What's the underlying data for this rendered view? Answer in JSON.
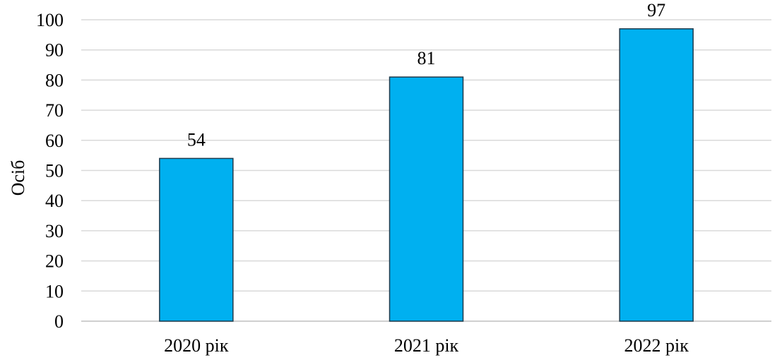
{
  "chart_data": {
    "type": "bar",
    "categories": [
      "2020 рік",
      "2021 рік",
      "2022 рік"
    ],
    "values": [
      54,
      81,
      97
    ],
    "title": "",
    "xlabel": "",
    "ylabel": "Осіб",
    "ylim": [
      0,
      100
    ],
    "yticks": [
      0,
      10,
      20,
      30,
      40,
      50,
      60,
      70,
      80,
      90,
      100
    ],
    "data_labels": true,
    "grid": "horizontal",
    "bar_color": "#00b0f0",
    "bar_edge_color": "#1f3b4d",
    "legend": "none"
  }
}
